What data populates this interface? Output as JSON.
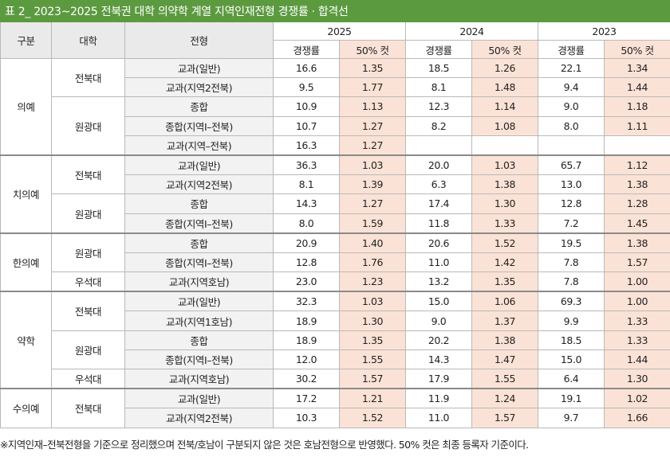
{
  "title": "표 2_ 2023~2025 전북권 대학 의약학 계열 지역인재전형 경쟁률 · 합격선",
  "headers": {
    "group": "구분",
    "university": "대학",
    "admission_type": "전형",
    "years": [
      "2025",
      "2024",
      "2023"
    ],
    "sub_rate": "경쟁률",
    "sub_cut": "50% 컷"
  },
  "rows": [
    {
      "group": "의예",
      "university": "전북대",
      "type": "교과(일반)",
      "y2025": [
        "16.6",
        "1.35"
      ],
      "y2024": [
        "18.5",
        "1.26"
      ],
      "y2023": [
        "22.1",
        "1.34"
      ]
    },
    {
      "group": "의예",
      "university": "전북대",
      "type": "교과(지역2전북)",
      "y2025": [
        "9.5",
        "1.77"
      ],
      "y2024": [
        "8.1",
        "1.48"
      ],
      "y2023": [
        "9.4",
        "1.44"
      ]
    },
    {
      "group": "의예",
      "university": "원광대",
      "type": "종합",
      "y2025": [
        "10.9",
        "1.13"
      ],
      "y2024": [
        "12.3",
        "1.14"
      ],
      "y2023": [
        "9.0",
        "1.18"
      ]
    },
    {
      "group": "의예",
      "university": "원광대",
      "type": "종합(지역Ⅰ–전북)",
      "y2025": [
        "10.7",
        "1.27"
      ],
      "y2024": [
        "8.2",
        "1.08"
      ],
      "y2023": [
        "8.0",
        "1.11"
      ]
    },
    {
      "group": "의예",
      "university": "원광대",
      "type": "교과(지역–전북)",
      "y2025": [
        "16.3",
        "1.27"
      ],
      "y2024": [
        "",
        ""
      ],
      "y2023": [
        "",
        ""
      ]
    },
    {
      "group": "치의예",
      "university": "전북대",
      "type": "교과(일반)",
      "y2025": [
        "36.3",
        "1.03"
      ],
      "y2024": [
        "20.0",
        "1.03"
      ],
      "y2023": [
        "65.7",
        "1.12"
      ]
    },
    {
      "group": "치의예",
      "university": "전북대",
      "type": "교과(지역2전북)",
      "y2025": [
        "8.1",
        "1.39"
      ],
      "y2024": [
        "6.3",
        "1.38"
      ],
      "y2023": [
        "13.0",
        "1.38"
      ]
    },
    {
      "group": "치의예",
      "university": "원광대",
      "type": "종합",
      "y2025": [
        "14.3",
        "1.27"
      ],
      "y2024": [
        "17.4",
        "1.30"
      ],
      "y2023": [
        "12.8",
        "1.28"
      ]
    },
    {
      "group": "치의예",
      "university": "원광대",
      "type": "종합(지역Ⅰ–전북)",
      "y2025": [
        "8.0",
        "1.59"
      ],
      "y2024": [
        "11.8",
        "1.33"
      ],
      "y2023": [
        "7.2",
        "1.45"
      ]
    },
    {
      "group": "한의예",
      "university": "원광대",
      "type": "종합",
      "y2025": [
        "20.9",
        "1.40"
      ],
      "y2024": [
        "20.6",
        "1.52"
      ],
      "y2023": [
        "19.5",
        "1.38"
      ]
    },
    {
      "group": "한의예",
      "university": "원광대",
      "type": "종합(지역Ⅰ–전북)",
      "y2025": [
        "12.8",
        "1.76"
      ],
      "y2024": [
        "11.0",
        "1.42"
      ],
      "y2023": [
        "7.8",
        "1.57"
      ]
    },
    {
      "group": "한의예",
      "university": "우석대",
      "type": "교과(지역호남)",
      "y2025": [
        "23.0",
        "1.23"
      ],
      "y2024": [
        "13.2",
        "1.35"
      ],
      "y2023": [
        "7.8",
        "1.00"
      ]
    },
    {
      "group": "약학",
      "university": "전북대",
      "type": "교과(일반)",
      "y2025": [
        "32.3",
        "1.03"
      ],
      "y2024": [
        "15.0",
        "1.06"
      ],
      "y2023": [
        "69.3",
        "1.00"
      ]
    },
    {
      "group": "약학",
      "university": "전북대",
      "type": "교과(지역1호남)",
      "y2025": [
        "18.9",
        "1.30"
      ],
      "y2024": [
        "9.0",
        "1.37"
      ],
      "y2023": [
        "9.9",
        "1.33"
      ]
    },
    {
      "group": "약학",
      "university": "원광대",
      "type": "종합",
      "y2025": [
        "18.9",
        "1.35"
      ],
      "y2024": [
        "20.2",
        "1.38"
      ],
      "y2023": [
        "18.5",
        "1.33"
      ]
    },
    {
      "group": "약학",
      "university": "원광대",
      "type": "종합(지역Ⅰ–전북)",
      "y2025": [
        "12.0",
        "1.55"
      ],
      "y2024": [
        "14.3",
        "1.47"
      ],
      "y2023": [
        "15.0",
        "1.44"
      ]
    },
    {
      "group": "약학",
      "university": "우석대",
      "type": "교과(지역호남)",
      "y2025": [
        "30.2",
        "1.57"
      ],
      "y2024": [
        "17.9",
        "1.55"
      ],
      "y2023": [
        "6.4",
        "1.30"
      ]
    },
    {
      "group": "수의예",
      "university": "전북대",
      "type": "교과(일반)",
      "y2025": [
        "17.2",
        "1.21"
      ],
      "y2024": [
        "11.9",
        "1.24"
      ],
      "y2023": [
        "19.1",
        "1.02"
      ]
    },
    {
      "group": "수의예",
      "university": "전북대",
      "type": "교과(지역2전북)",
      "y2025": [
        "10.3",
        "1.52"
      ],
      "y2024": [
        "11.0",
        "1.57"
      ],
      "y2023": [
        "9.7",
        "1.66"
      ]
    }
  ],
  "note": "※지역인재–전북전형을 기준으로 정리했으며 전북/호남이 구분되지 않은 것은 호남전형으로 반영했다. 50% 컷은 최종 등록자 기준이다.",
  "colors": {
    "title_bg": "#5c9a40",
    "cut_bg": "#fbe2d6",
    "header_bg": "#eaeaea",
    "type_bg": "#f2f2f2"
  }
}
